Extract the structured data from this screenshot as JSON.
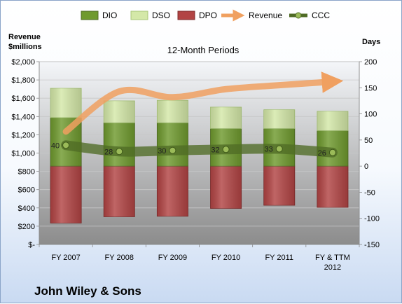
{
  "colors": {
    "dio": "#6f9a2e",
    "dso": "#d4e8a8",
    "dpo": "#b24444",
    "revenue": "#f0a060",
    "ccc": "#4f6b25",
    "plot_top": "#f4f6f9",
    "plot_bottom": "#8c8c8c"
  },
  "chart_data": {
    "type": "bar",
    "subtitle": "12-Month Periods",
    "company": "John Wiley & Sons",
    "categories": [
      [
        "FY 2007"
      ],
      [
        "FY 2008"
      ],
      [
        "FY 2009"
      ],
      [
        "FY 2010"
      ],
      [
        "FY 2011"
      ],
      [
        "FY & TTM",
        "2012"
      ]
    ],
    "legend": [
      "DIO",
      "DSO",
      "DPO",
      "Revenue",
      "CCC"
    ],
    "legend_position": "top",
    "left_axis": {
      "title": [
        "Revenue",
        "$millions"
      ],
      "min": 0,
      "max": 2000,
      "step": 200,
      "ticks": [
        "$-",
        "$200",
        "$400",
        "$600",
        "$800",
        "$1,000",
        "$1,200",
        "$1,400",
        "$1,600",
        "$1,800",
        "$2,000"
      ]
    },
    "right_axis": {
      "title": "Days",
      "min": -150,
      "max": 200,
      "step": 50,
      "ticks": [
        "-150",
        "-100",
        "-50",
        "0",
        "50",
        "100",
        "150",
        "200"
      ]
    },
    "series": [
      {
        "name": "DPO",
        "axis": "right",
        "type": "bar_negative",
        "values": [
          -109,
          -97,
          -96,
          -81,
          -75,
          -79
        ]
      },
      {
        "name": "DIO",
        "axis": "right",
        "type": "stacked_bar",
        "values": [
          93,
          83,
          83,
          72,
          72,
          68
        ]
      },
      {
        "name": "DSO",
        "axis": "right",
        "type": "stacked_bar",
        "values": [
          56,
          42,
          43,
          41,
          36,
          37
        ]
      },
      {
        "name": "Revenue",
        "axis": "left",
        "type": "line",
        "values": [
          1235,
          1674,
          1611,
          1699,
          1742,
          1782
        ]
      },
      {
        "name": "CCC",
        "axis": "right",
        "type": "line",
        "values": [
          40,
          28,
          30,
          32,
          33,
          26
        ],
        "labels": [
          "40",
          "28",
          "30",
          "32",
          "33",
          "26"
        ]
      }
    ]
  }
}
